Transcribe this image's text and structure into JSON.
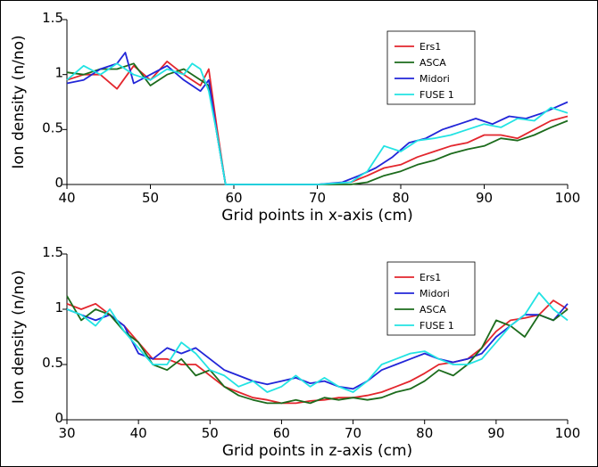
{
  "chart_data": [
    {
      "type": "line",
      "xlabel": "Grid points in x-axis (cm)",
      "ylabel": "Ion density (n/no)",
      "xlim": [
        40,
        100
      ],
      "ylim": [
        0,
        1.5
      ],
      "xticks": [
        "40",
        "50",
        "60",
        "70",
        "80",
        "90",
        "100"
      ],
      "yticks": [
        "0",
        "0.5",
        "1",
        "1.5"
      ],
      "legend_position": "top-right",
      "series": [
        {
          "name": "Ers1",
          "color": "#e3262d",
          "x": [
            40,
            42,
            44,
            46,
            48,
            50,
            52,
            54,
            56,
            57,
            58,
            59,
            60,
            65,
            70,
            74,
            76,
            78,
            80,
            82,
            84,
            86,
            88,
            90,
            92,
            94,
            96,
            98,
            100
          ],
          "y": [
            0.95,
            1.0,
            1.0,
            0.87,
            1.08,
            0.95,
            1.12,
            1.0,
            0.9,
            1.05,
            0.5,
            0.0,
            0.0,
            0.0,
            0.0,
            0.02,
            0.08,
            0.15,
            0.18,
            0.25,
            0.3,
            0.35,
            0.38,
            0.45,
            0.45,
            0.42,
            0.5,
            0.58,
            0.62
          ]
        },
        {
          "name": "ASCA",
          "color": "#1c6b1c",
          "x": [
            40,
            42,
            44,
            46,
            48,
            50,
            52,
            54,
            56,
            57,
            58,
            59,
            60,
            65,
            70,
            74,
            76,
            78,
            80,
            82,
            84,
            86,
            88,
            90,
            92,
            94,
            96,
            98,
            100
          ],
          "y": [
            1.02,
            1.0,
            1.05,
            1.05,
            1.1,
            0.9,
            1.0,
            1.05,
            0.95,
            0.9,
            0.45,
            0.0,
            0.0,
            0.0,
            0.0,
            0.0,
            0.02,
            0.08,
            0.12,
            0.18,
            0.22,
            0.28,
            0.32,
            0.35,
            0.42,
            0.4,
            0.45,
            0.52,
            0.58
          ]
        },
        {
          "name": "Midori",
          "color": "#2226d8",
          "x": [
            40,
            42,
            44,
            46,
            47,
            48,
            50,
            52,
            54,
            56,
            57,
            58,
            59,
            60,
            65,
            70,
            73,
            75,
            77,
            79,
            81,
            83,
            85,
            87,
            89,
            91,
            93,
            95,
            97,
            100
          ],
          "y": [
            0.92,
            0.95,
            1.05,
            1.1,
            1.2,
            0.92,
            1.0,
            1.08,
            0.95,
            0.85,
            0.95,
            0.45,
            0.0,
            0.0,
            0.0,
            0.0,
            0.02,
            0.08,
            0.15,
            0.25,
            0.38,
            0.42,
            0.5,
            0.55,
            0.6,
            0.55,
            0.62,
            0.6,
            0.65,
            0.75
          ]
        },
        {
          "name": "FUSE 1",
          "color": "#22e3e3",
          "x": [
            40,
            42,
            44,
            46,
            48,
            50,
            52,
            54,
            55,
            56,
            57,
            58,
            59,
            60,
            65,
            70,
            74,
            76,
            78,
            80,
            82,
            84,
            86,
            88,
            90,
            92,
            94,
            96,
            98,
            100
          ],
          "y": [
            0.95,
            1.08,
            1.0,
            1.1,
            1.0,
            0.95,
            1.05,
            1.0,
            1.1,
            1.05,
            0.85,
            0.45,
            0.0,
            0.0,
            0.0,
            0.0,
            0.02,
            0.12,
            0.35,
            0.3,
            0.4,
            0.42,
            0.45,
            0.5,
            0.55,
            0.52,
            0.6,
            0.58,
            0.7,
            0.65
          ]
        }
      ]
    },
    {
      "type": "line",
      "xlabel": "Grid points in z-axis (cm)",
      "ylabel": "Ion density (n/no)",
      "xlim": [
        30,
        100
      ],
      "ylim": [
        0,
        1.5
      ],
      "xticks": [
        "30",
        "40",
        "50",
        "60",
        "70",
        "80",
        "90",
        "100"
      ],
      "yticks": [
        "0",
        "0.5",
        "1",
        "1.5"
      ],
      "legend_position": "top-right",
      "series": [
        {
          "name": "Ers1",
          "color": "#e3262d",
          "x": [
            30,
            32,
            34,
            36,
            38,
            40,
            42,
            44,
            46,
            48,
            50,
            52,
            54,
            56,
            58,
            60,
            62,
            64,
            66,
            68,
            70,
            72,
            74,
            76,
            78,
            80,
            82,
            84,
            86,
            88,
            90,
            92,
            94,
            96,
            98,
            100
          ],
          "y": [
            1.05,
            1.0,
            1.05,
            0.95,
            0.85,
            0.7,
            0.55,
            0.55,
            0.5,
            0.5,
            0.4,
            0.3,
            0.25,
            0.2,
            0.18,
            0.15,
            0.15,
            0.17,
            0.18,
            0.2,
            0.2,
            0.22,
            0.25,
            0.3,
            0.35,
            0.42,
            0.5,
            0.52,
            0.55,
            0.65,
            0.8,
            0.9,
            0.92,
            0.95,
            1.08,
            1.0
          ]
        },
        {
          "name": "Midori",
          "color": "#2226d8",
          "x": [
            30,
            32,
            34,
            36,
            38,
            40,
            42,
            44,
            46,
            48,
            50,
            52,
            54,
            56,
            58,
            60,
            62,
            64,
            66,
            68,
            70,
            72,
            74,
            76,
            78,
            80,
            82,
            84,
            86,
            88,
            90,
            92,
            94,
            96,
            98,
            100
          ],
          "y": [
            1.0,
            0.95,
            0.9,
            0.95,
            0.85,
            0.6,
            0.55,
            0.65,
            0.6,
            0.65,
            0.55,
            0.45,
            0.4,
            0.35,
            0.32,
            0.35,
            0.38,
            0.33,
            0.35,
            0.3,
            0.28,
            0.35,
            0.45,
            0.5,
            0.55,
            0.6,
            0.55,
            0.52,
            0.55,
            0.6,
            0.75,
            0.85,
            0.95,
            0.95,
            0.9,
            1.05
          ]
        },
        {
          "name": "ASCA",
          "color": "#1c6b1c",
          "x": [
            30,
            32,
            34,
            36,
            38,
            40,
            42,
            44,
            46,
            48,
            50,
            52,
            54,
            56,
            58,
            60,
            62,
            64,
            66,
            68,
            70,
            72,
            74,
            76,
            78,
            80,
            82,
            84,
            86,
            88,
            90,
            92,
            94,
            96,
            98,
            100
          ],
          "y": [
            1.12,
            0.9,
            1.0,
            0.95,
            0.8,
            0.7,
            0.5,
            0.45,
            0.55,
            0.4,
            0.45,
            0.3,
            0.22,
            0.18,
            0.15,
            0.15,
            0.18,
            0.15,
            0.2,
            0.18,
            0.2,
            0.18,
            0.2,
            0.25,
            0.28,
            0.35,
            0.45,
            0.4,
            0.5,
            0.65,
            0.9,
            0.85,
            0.75,
            0.95,
            0.9,
            1.0
          ]
        },
        {
          "name": "FUSE 1",
          "color": "#22e3e3",
          "x": [
            30,
            32,
            34,
            36,
            38,
            40,
            42,
            44,
            46,
            48,
            50,
            52,
            54,
            56,
            58,
            60,
            62,
            64,
            66,
            68,
            70,
            72,
            74,
            76,
            78,
            80,
            82,
            84,
            86,
            88,
            90,
            92,
            94,
            96,
            98,
            100
          ],
          "y": [
            1.0,
            0.95,
            0.85,
            1.0,
            0.8,
            0.65,
            0.5,
            0.5,
            0.7,
            0.6,
            0.45,
            0.4,
            0.3,
            0.35,
            0.25,
            0.3,
            0.4,
            0.3,
            0.38,
            0.3,
            0.25,
            0.35,
            0.5,
            0.55,
            0.6,
            0.62,
            0.55,
            0.5,
            0.5,
            0.55,
            0.7,
            0.85,
            0.95,
            1.15,
            1.0,
            0.9
          ]
        }
      ]
    }
  ]
}
